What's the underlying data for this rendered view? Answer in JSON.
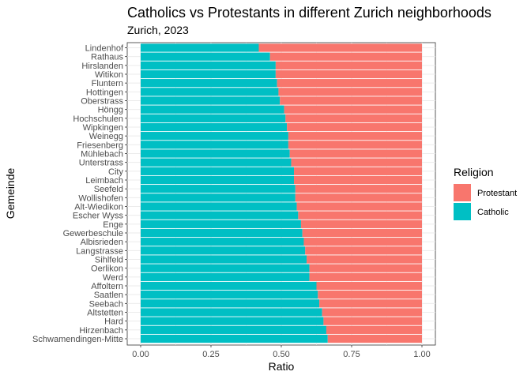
{
  "chart_data": {
    "type": "bar",
    "orientation": "horizontal",
    "stacked": true,
    "title": "Catholics vs Protestants in different Zurich neighborhoods",
    "subtitle": "Zurich, 2023",
    "xlabel": "Ratio",
    "ylabel": "Gemeinde",
    "xlim": [
      0,
      1
    ],
    "x_ticks": [
      "0.00",
      "0.25",
      "0.50",
      "0.75",
      "1.00"
    ],
    "x_tick_values": [
      0,
      0.25,
      0.5,
      0.75,
      1.0
    ],
    "grid": true,
    "legend": {
      "title": "Religion",
      "placement": "right",
      "entries": [
        {
          "label": "Protestant",
          "color": "#F8766D"
        },
        {
          "label": "Catholic",
          "color": "#00BFC4"
        }
      ]
    },
    "categories": [
      "Lindenhof",
      "Rathaus",
      "Hirslanden",
      "Witikon",
      "Fluntern",
      "Hottingen",
      "Oberstrass",
      "Höngg",
      "Hochschulen",
      "Wipkingen",
      "Weinegg",
      "Friesenberg",
      "Mühlebach",
      "Unterstrass",
      "City",
      "Leimbach",
      "Seefeld",
      "Wollishofen",
      "Alt-Wiedikon",
      "Escher Wyss",
      "Enge",
      "Gewerbeschule",
      "Albisrieden",
      "Langstrasse",
      "Sihlfeld",
      "Oerlikon",
      "Werd",
      "Affoltern",
      "Saatlen",
      "Seebach",
      "Altstetten",
      "Hard",
      "Hirzenbach",
      "Schwamendingen-Mitte"
    ],
    "series": [
      {
        "name": "Catholic",
        "color": "#00BFC4",
        "values": [
          0.42,
          0.46,
          0.48,
          0.48,
          0.485,
          0.49,
          0.495,
          0.51,
          0.515,
          0.52,
          0.525,
          0.525,
          0.53,
          0.535,
          0.545,
          0.545,
          0.55,
          0.55,
          0.555,
          0.56,
          0.57,
          0.575,
          0.58,
          0.585,
          0.59,
          0.6,
          0.6,
          0.625,
          0.63,
          0.635,
          0.645,
          0.65,
          0.66,
          0.665
        ]
      },
      {
        "name": "Protestant",
        "color": "#F8766D",
        "values": [
          0.58,
          0.54,
          0.52,
          0.52,
          0.515,
          0.51,
          0.505,
          0.49,
          0.485,
          0.48,
          0.475,
          0.475,
          0.47,
          0.465,
          0.455,
          0.455,
          0.45,
          0.45,
          0.445,
          0.44,
          0.43,
          0.425,
          0.42,
          0.415,
          0.41,
          0.4,
          0.4,
          0.375,
          0.37,
          0.365,
          0.355,
          0.35,
          0.34,
          0.335
        ]
      }
    ]
  }
}
